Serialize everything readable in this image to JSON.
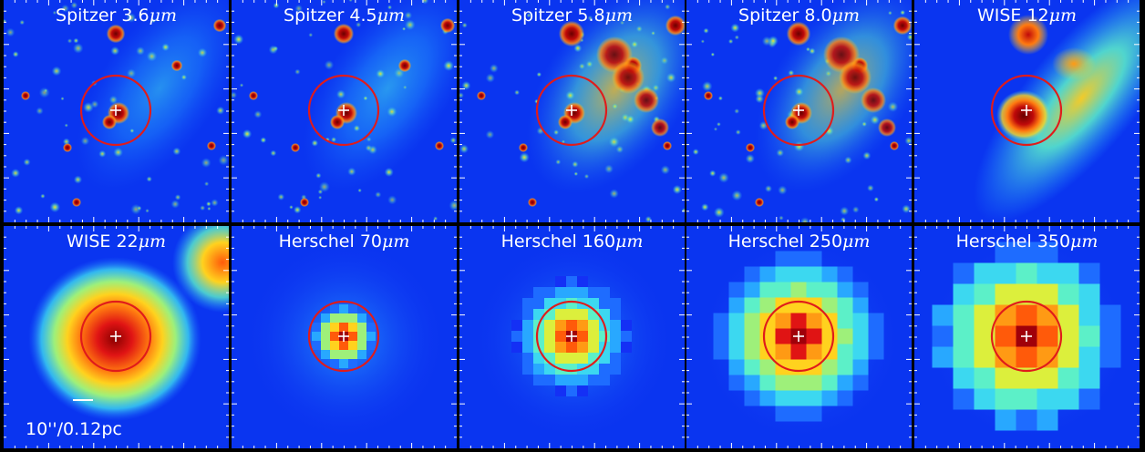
{
  "panels": [
    {
      "instrument": "Spitzer",
      "wavelength": "3.6",
      "unit": "μm",
      "style": "irac1"
    },
    {
      "instrument": "Spitzer",
      "wavelength": "4.5",
      "unit": "μm",
      "style": "irac2"
    },
    {
      "instrument": "Spitzer",
      "wavelength": "5.8",
      "unit": "μm",
      "style": "irac3"
    },
    {
      "instrument": "Spitzer",
      "wavelength": "8.0",
      "unit": "μm",
      "style": "irac4"
    },
    {
      "instrument": "WISE",
      "wavelength": "12",
      "unit": "μm",
      "style": "wise12"
    },
    {
      "instrument": "WISE",
      "wavelength": "22",
      "unit": "μm",
      "style": "wise22"
    },
    {
      "instrument": "Herschel",
      "wavelength": "70",
      "unit": "μm",
      "style": "pix70"
    },
    {
      "instrument": "Herschel",
      "wavelength": "160",
      "unit": "μm",
      "style": "pix160"
    },
    {
      "instrument": "Herschel",
      "wavelength": "250",
      "unit": "μm",
      "style": "pix250"
    },
    {
      "instrument": "Herschel",
      "wavelength": "350",
      "unit": "μm",
      "style": "pix350"
    }
  ],
  "scale_label": "10''/0.12pc",
  "colors": {
    "circle": "#e01b1b",
    "marker": "#ffffff",
    "background": "#0a35f0"
  }
}
